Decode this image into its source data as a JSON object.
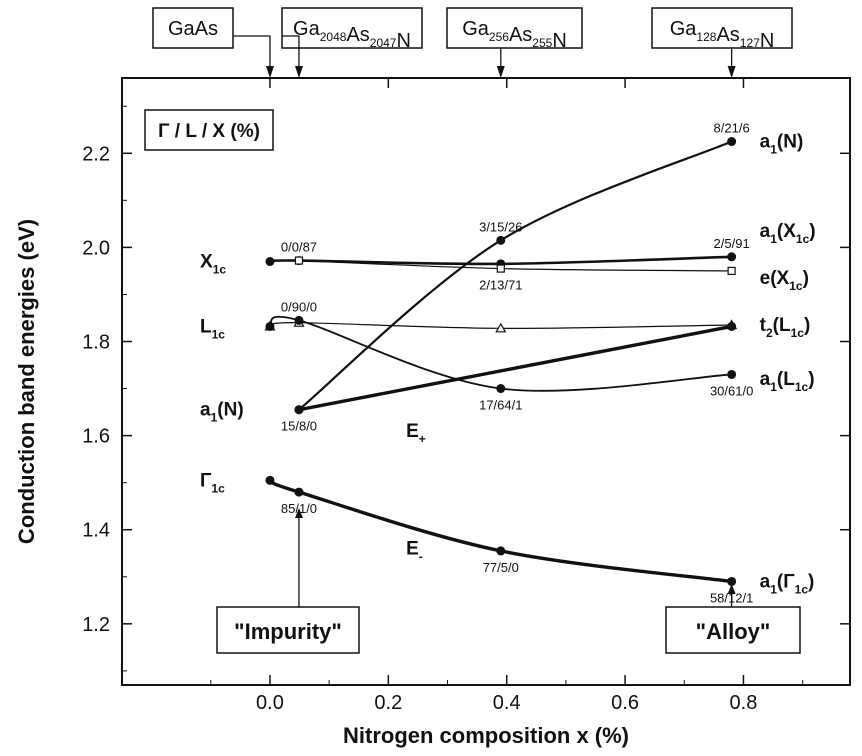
{
  "chart_data": {
    "type": "line",
    "xlabel": "Nitrogen composition x (%)",
    "ylabel": "Conduction band energies (eV)",
    "xlim": [
      -0.25,
      0.98
    ],
    "ylim": [
      1.07,
      2.36
    ],
    "xticks": [
      0.0,
      0.2,
      0.4,
      0.6,
      0.8
    ],
    "xtick_labels": [
      "0.0",
      "0.2",
      "0.4",
      "0.6",
      "0.8"
    ],
    "yticks": [
      1.2,
      1.4,
      1.6,
      1.8,
      2.0,
      2.2
    ],
    "ytick_labels": [
      "1.2",
      "1.4",
      "1.6",
      "1.8",
      "2.0",
      "2.2"
    ],
    "grid": false,
    "legend_box": {
      "text": "Γ / L / X (%)"
    },
    "top_labels": [
      {
        "x": 0.0,
        "main": "GaAs",
        "parts": []
      },
      {
        "x": 0.049,
        "main": "",
        "parts": [
          [
            "Ga",
            ""
          ],
          [
            "2048",
            "sub"
          ],
          [
            "As",
            ""
          ],
          [
            "2047",
            "sub"
          ],
          [
            "N",
            ""
          ]
        ]
      },
      {
        "x": 0.39,
        "main": "",
        "parts": [
          [
            "Ga",
            ""
          ],
          [
            "256",
            "sub"
          ],
          [
            "As",
            ""
          ],
          [
            "255",
            "sub"
          ],
          [
            "N",
            ""
          ]
        ]
      },
      {
        "x": 0.78,
        "main": "",
        "parts": [
          [
            "Ga",
            ""
          ],
          [
            "128",
            "sub"
          ],
          [
            "As",
            ""
          ],
          [
            "127",
            "sub"
          ],
          [
            "N",
            ""
          ]
        ]
      }
    ],
    "regime_labels": [
      {
        "text": "\"Impurity\"",
        "x": 0.049
      },
      {
        "text": "\"Alloy\"",
        "x": 0.78
      }
    ],
    "series": [
      {
        "label_key": "a1N",
        "style": "solid",
        "marker": "circle",
        "width": 2.2,
        "x": [
          0.049,
          0.39,
          0.78
        ],
        "y": [
          1.655,
          2.015,
          2.225
        ]
      },
      {
        "label_key": "a1X",
        "style": "solid",
        "marker": "circle",
        "width": 2.6,
        "x": [
          0.0,
          0.049,
          0.39,
          0.78
        ],
        "y": [
          1.97,
          1.972,
          1.965,
          1.98
        ]
      },
      {
        "label_key": "eX",
        "style": "solid",
        "marker": "square-open",
        "width": 1.2,
        "x": [
          0.049,
          0.39,
          0.78
        ],
        "y": [
          1.972,
          1.955,
          1.95
        ]
      },
      {
        "label_key": "t2L",
        "style": "solid",
        "marker": "triangle-open",
        "width": 1.2,
        "x": [
          0.0,
          0.049,
          0.39,
          0.78
        ],
        "y": [
          1.832,
          1.84,
          1.828,
          1.835
        ]
      },
      {
        "label_key": "a1L",
        "style": "solid",
        "marker": "circle",
        "width": 1.8,
        "x": [
          0.0,
          0.049,
          0.39,
          0.78
        ],
        "y": [
          1.832,
          1.845,
          1.7,
          1.73
        ]
      },
      {
        "label_key": "Eplus",
        "style": "solid",
        "marker": "circle",
        "width": 3.4,
        "x": [
          0.049,
          0.78
        ],
        "y": [
          1.655,
          1.832
        ]
      },
      {
        "label_key": "Eminus",
        "style": "solid",
        "marker": "circle",
        "width": 3.4,
        "x": [
          0.0,
          0.049,
          0.39,
          0.78
        ],
        "y": [
          1.505,
          1.48,
          1.355,
          1.29
        ]
      }
    ],
    "point_labels": [
      {
        "x": 0.049,
        "y": 1.972,
        "text": "0/0/87",
        "pos": "above"
      },
      {
        "x": 0.049,
        "y": 1.845,
        "text": "0/90/0",
        "pos": "above"
      },
      {
        "x": 0.049,
        "y": 1.655,
        "text": "15/8/0",
        "pos": "below"
      },
      {
        "x": 0.049,
        "y": 1.48,
        "text": "85/1/0",
        "pos": "below"
      },
      {
        "x": 0.39,
        "y": 2.015,
        "text": "3/15/26",
        "pos": "above"
      },
      {
        "x": 0.39,
        "y": 1.955,
        "text": "2/13/71",
        "pos": "below"
      },
      {
        "x": 0.39,
        "y": 1.7,
        "text": "17/64/1",
        "pos": "below"
      },
      {
        "x": 0.39,
        "y": 1.355,
        "text": "77/5/0",
        "pos": "below"
      },
      {
        "x": 0.78,
        "y": 2.225,
        "text": "8/21/6",
        "pos": "above"
      },
      {
        "x": 0.78,
        "y": 1.98,
        "text": "2/5/91",
        "pos": "above"
      },
      {
        "x": 0.78,
        "y": 1.73,
        "text": "30/61/0",
        "pos": "below"
      },
      {
        "x": 0.78,
        "y": 1.29,
        "text": "58/12/1",
        "pos": "below"
      }
    ],
    "left_labels": [
      {
        "base": "X",
        "sub": "1c",
        "y": 1.97
      },
      {
        "base": "L",
        "sub": "1c",
        "y": 1.832
      },
      {
        "base": "a",
        "sub": "1",
        "after": "(N)",
        "y": 1.655
      },
      {
        "base": "Γ",
        "sub": "1c",
        "y": 1.505
      }
    ],
    "right_labels": [
      {
        "key": "a1N",
        "base": "a",
        "sub": "1",
        "after": "(N)",
        "y": 2.225
      },
      {
        "key": "a1X",
        "base": "a",
        "sub": "1",
        "after": "(X",
        "sub2": "1c",
        "close": ")",
        "y": 2.035
      },
      {
        "key": "eX",
        "base": "e(X",
        "sub": "1c",
        "after": ")",
        "y": 1.935
      },
      {
        "key": "t2L",
        "base": "t",
        "sub": "2",
        "after": "(L",
        "sub2": "1c",
        "close": ")",
        "y": 1.835
      },
      {
        "key": "a1L",
        "base": "a",
        "sub": "1",
        "after": "(L",
        "sub2": "1c",
        "close": ")",
        "y": 1.72
      },
      {
        "key": "a1G",
        "base": "a",
        "sub": "1",
        "after": "(Γ",
        "sub2": "1c",
        "close": ")",
        "y": 1.29
      }
    ],
    "curve_labels": [
      {
        "base": "E",
        "sub": "+",
        "x": 0.23,
        "y": 1.61
      },
      {
        "base": "E",
        "sub": "-",
        "x": 0.23,
        "y": 1.36
      }
    ]
  }
}
